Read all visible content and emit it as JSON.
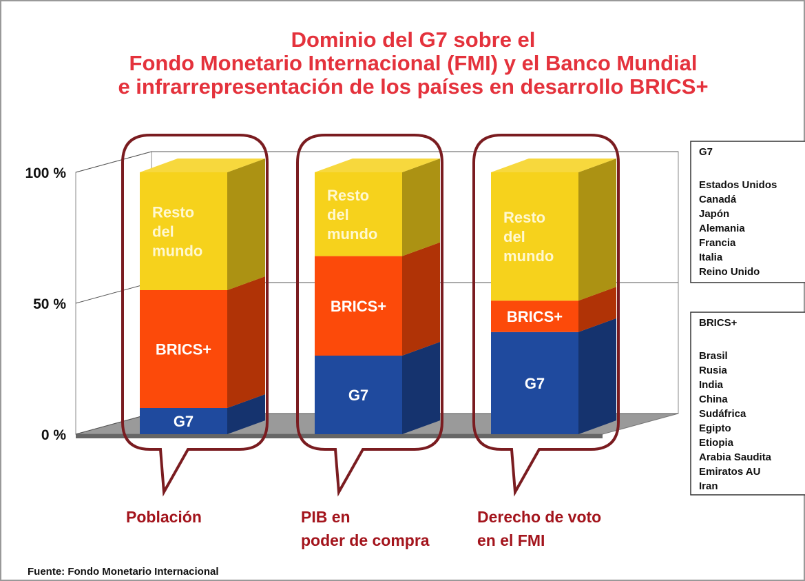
{
  "chart_data": {
    "type": "bar3d_stacked",
    "title": [
      "Dominio del G7 sobre el",
      "Fondo Monetario Internacional (FMI) y el Banco Mundial",
      "e infrarrepresentación de los países en desarrollo BRICS+"
    ],
    "categories": [
      "Población",
      "PIB en\npoder de compra",
      "Derecho de voto\nen el FMI"
    ],
    "series": [
      {
        "name": "G7",
        "color": "#1f4a9e",
        "values": [
          10,
          30,
          39
        ]
      },
      {
        "name": "BRICS+",
        "color": "#fc4a0a",
        "values": [
          45,
          38,
          12
        ]
      },
      {
        "name": "Resto\ndel\nmundo",
        "color": "#f6d21c",
        "values": [
          45,
          32,
          49
        ]
      }
    ],
    "ylim": [
      0,
      100
    ],
    "yticks": [
      {
        "value": 0,
        "label": "0 %"
      },
      {
        "value": 50,
        "label": "50 %"
      },
      {
        "value": 100,
        "label": "100 %"
      }
    ],
    "grid": true,
    "member_lists": [
      {
        "title": "G7",
        "members": [
          "Estados Unidos",
          "Canadá",
          "Japón",
          "Alemania",
          "Francia",
          "Italia",
          "Reino Unido"
        ]
      },
      {
        "title": "BRICS+",
        "members": [
          "Brasil",
          "Rusia",
          "India",
          "China",
          "Sudáfrica",
          "Egipto",
          "Etiopia",
          "Arabia Saudita",
          "Emiratos AU",
          "Iran"
        ]
      }
    ],
    "source": "Fuente: Fondo Monetario Internacional"
  }
}
